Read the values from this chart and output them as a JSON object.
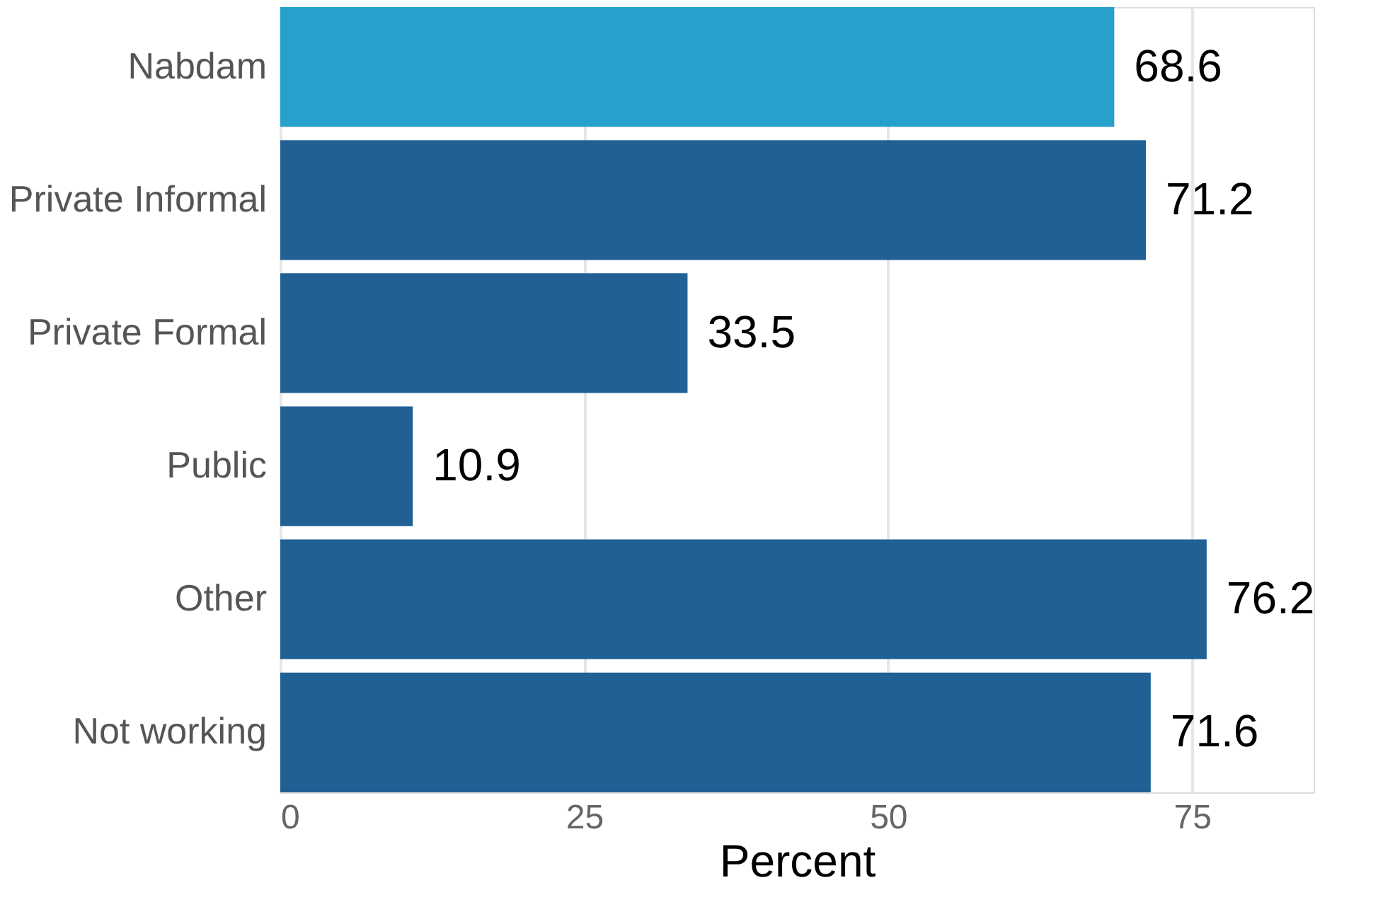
{
  "chart_data": {
    "type": "bar",
    "orientation": "horizontal",
    "categories": [
      "Nabdam",
      "Private Informal",
      "Private Formal",
      "Public",
      "Other",
      "Not working"
    ],
    "values": [
      68.6,
      71.2,
      33.5,
      10.9,
      76.2,
      71.6
    ],
    "colors": [
      "#27a0cc",
      "#206095",
      "#206095",
      "#206095",
      "#206095",
      "#206095"
    ],
    "xlabel": "Percent",
    "xlim": [
      0,
      85
    ],
    "xticks": [
      0,
      25,
      50,
      75
    ],
    "grid": "x",
    "data_labels": true
  }
}
